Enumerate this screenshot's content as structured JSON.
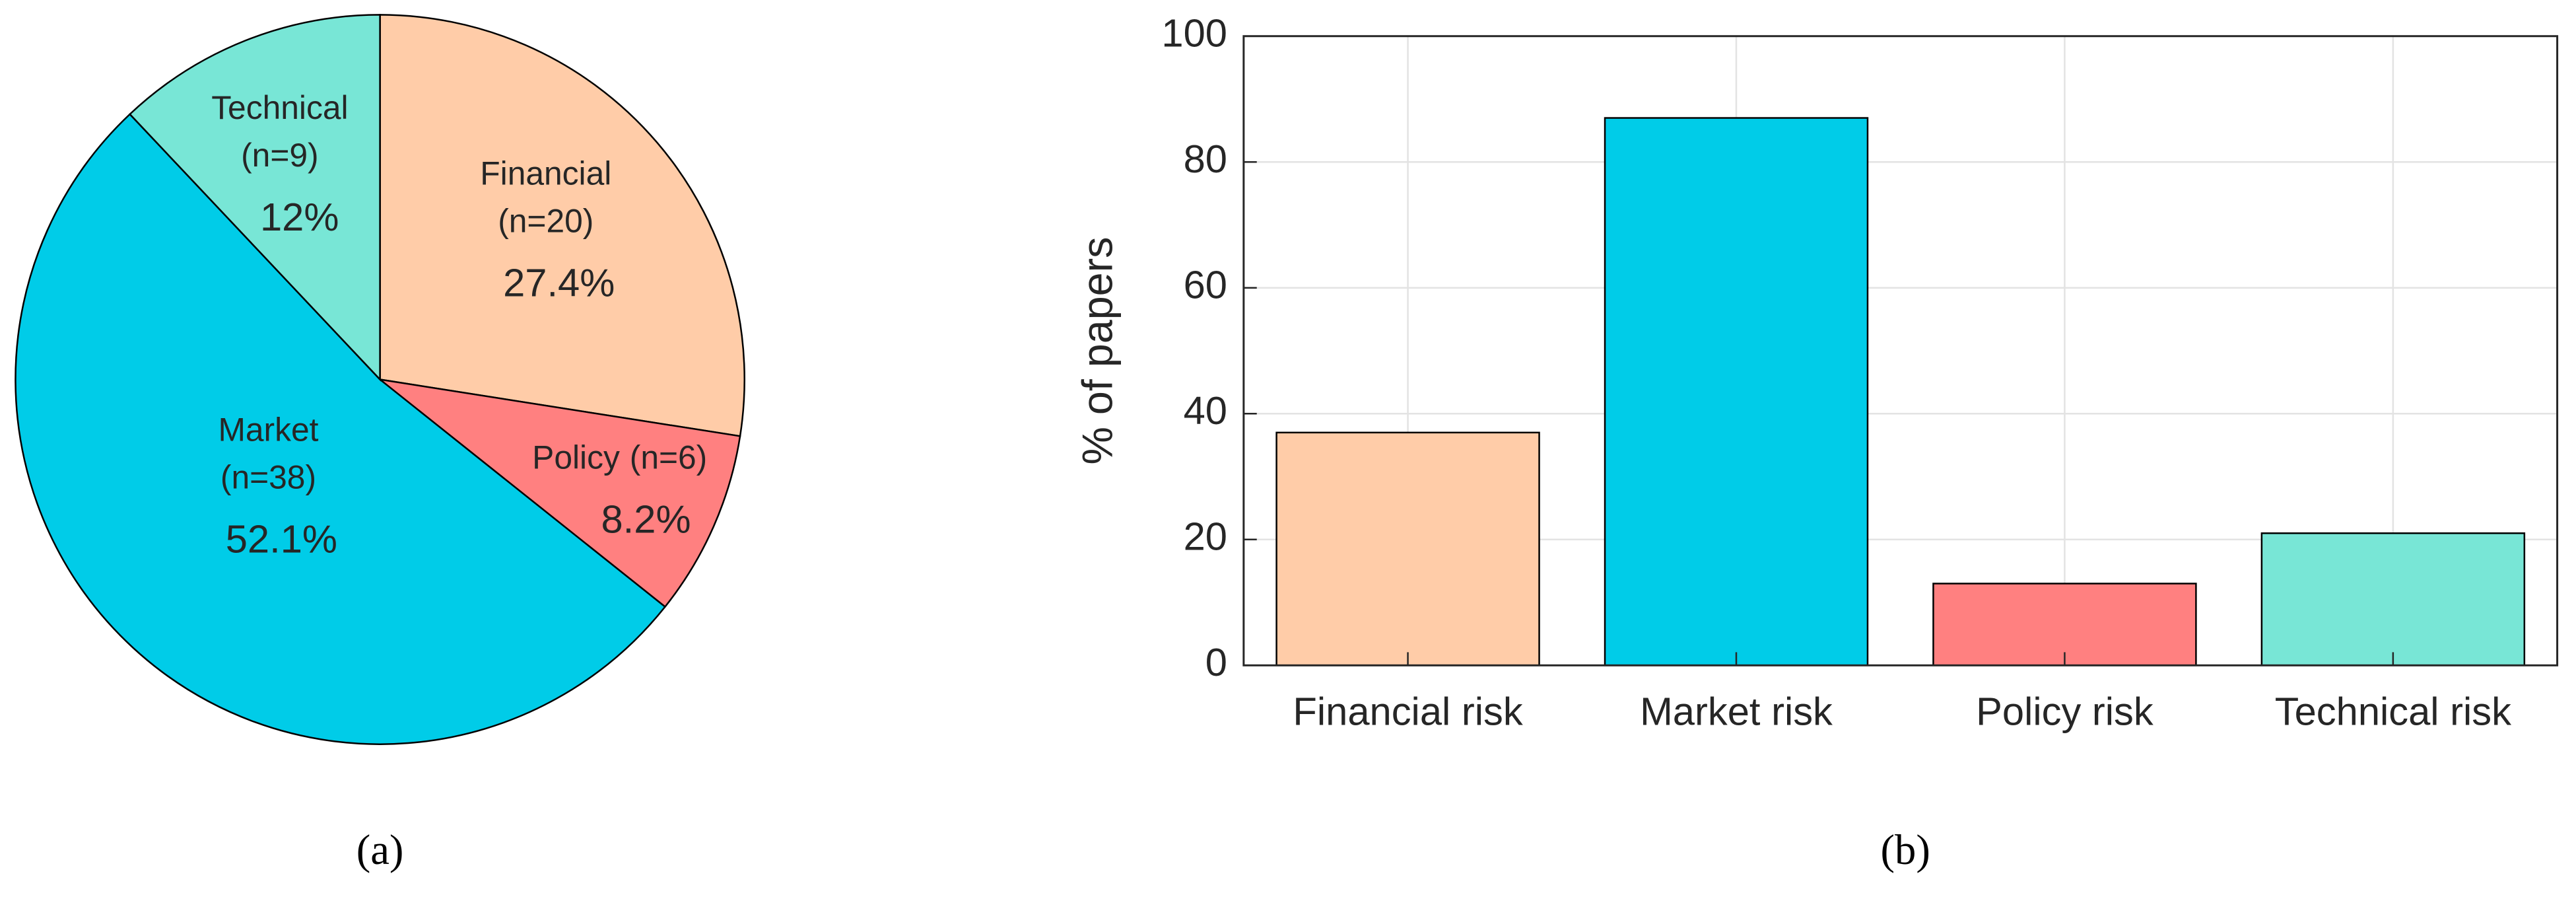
{
  "chart_data": [
    {
      "type": "pie",
      "caption": "(a)",
      "categories": [
        "Financial",
        "Policy",
        "Market",
        "Technical"
      ],
      "count_labels": [
        "(n=20)",
        "(n=6)",
        "(n=38)",
        "(n=9)"
      ],
      "values": [
        27.4,
        8.2,
        52.1,
        12
      ],
      "value_labels": [
        "27.4%",
        "8.2%",
        "52.1%",
        "12%"
      ],
      "colors": [
        "#ffcca8",
        "#ff8080",
        "#00cce8",
        "#78e6d6"
      ]
    },
    {
      "type": "bar",
      "caption": "(b)",
      "ylabel": "% of papers",
      "categories": [
        "Financial risk",
        "Market risk",
        "Policy risk",
        "Technical risk"
      ],
      "values": [
        37,
        87,
        13,
        21
      ],
      "colors": [
        "#ffcca8",
        "#00cce8",
        "#ff8080",
        "#78e6d6"
      ],
      "ylim": [
        0,
        100
      ],
      "yticks": [
        0,
        20,
        40,
        60,
        80,
        100
      ],
      "grid": true
    }
  ]
}
